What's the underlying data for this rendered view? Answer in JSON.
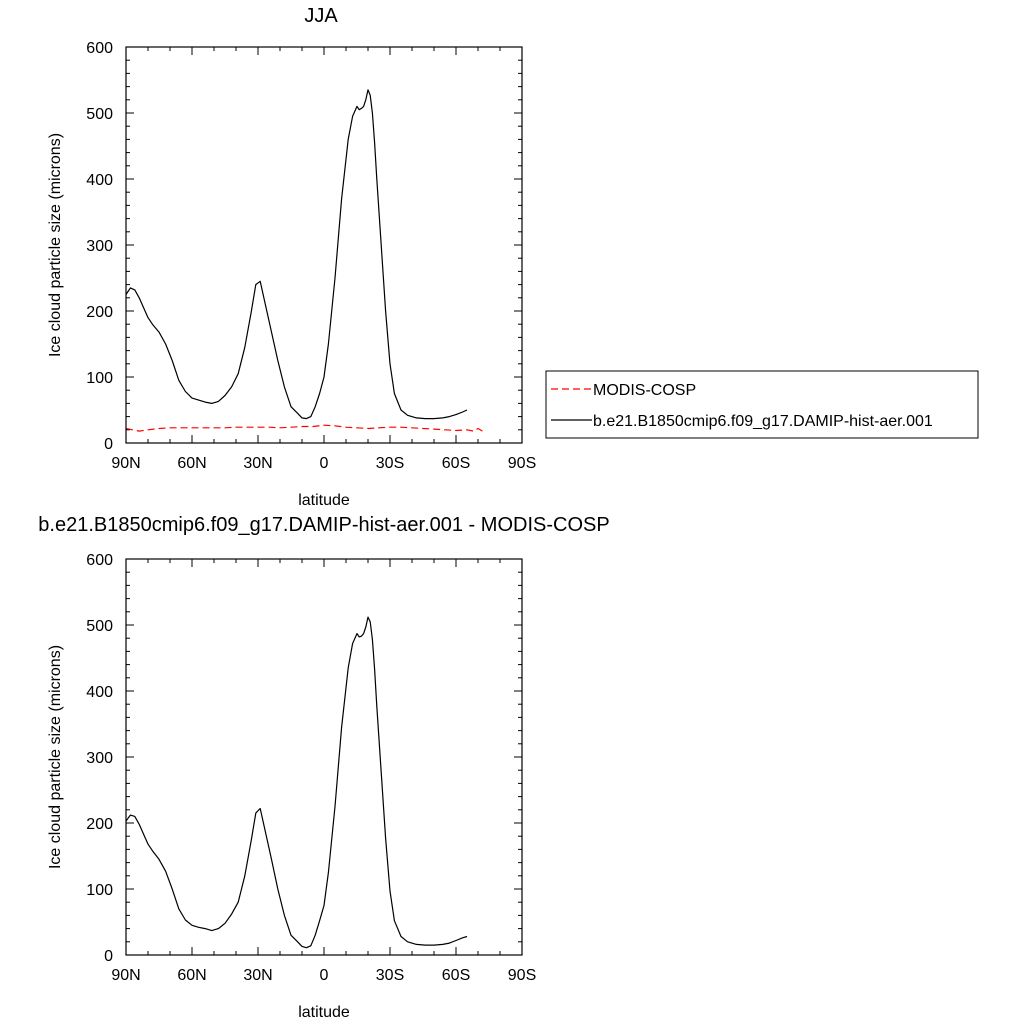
{
  "chart_data": [
    {
      "type": "line",
      "title": "JJA",
      "xlabel": "latitude",
      "ylabel": "Ice cloud particle size (microns)",
      "xlim": [
        90,
        -90
      ],
      "ylim": [
        0,
        600
      ],
      "x_ticks": [
        90,
        60,
        30,
        0,
        -30,
        -60,
        -90
      ],
      "x_tick_labels": [
        "90N",
        "60N",
        "30N",
        "0",
        "30S",
        "60S",
        "90S"
      ],
      "y_ticks": [
        0,
        100,
        200,
        300,
        400,
        500,
        600
      ],
      "y_tick_labels": [
        "0",
        "100",
        "200",
        "300",
        "400",
        "500",
        "600"
      ],
      "legend_placement": "outside-right",
      "series": [
        {
          "name": "MODIS-COSP",
          "color": "#ff0000",
          "dash": "dashed",
          "x": [
            90,
            87,
            84,
            80,
            75,
            70,
            65,
            60,
            55,
            50,
            45,
            40,
            35,
            30,
            25,
            20,
            15,
            10,
            5,
            0,
            -5,
            -10,
            -15,
            -20,
            -25,
            -30,
            -35,
            -40,
            -45,
            -50,
            -55,
            -60,
            -65,
            -68,
            -70,
            -72
          ],
          "y": [
            22,
            20,
            18,
            20,
            22,
            23,
            23,
            23,
            23,
            23,
            23,
            24,
            24,
            24,
            24,
            23,
            24,
            25,
            25,
            27,
            26,
            24,
            23,
            22,
            23,
            24,
            24,
            23,
            22,
            21,
            20,
            19,
            20,
            18,
            22,
            18
          ]
        },
        {
          "name": "b.e21.B1850cmip6.f09_g17.DAMIP-hist-aer.001",
          "color": "#000000",
          "dash": "solid",
          "x": [
            90,
            88,
            86,
            84,
            82,
            80,
            78,
            75,
            72,
            69,
            66,
            63,
            60,
            57,
            54,
            51,
            48,
            45,
            42,
            39,
            36,
            33,
            31,
            29,
            27,
            24,
            21,
            18,
            15,
            12,
            10,
            8,
            6,
            4,
            2,
            0,
            -2,
            -5,
            -8,
            -11,
            -13,
            -15,
            -16,
            -17,
            -18,
            -19,
            -20,
            -21,
            -22,
            -23,
            -24,
            -26,
            -28,
            -30,
            -32,
            -35,
            -38,
            -42,
            -46,
            -50,
            -54,
            -57,
            -60,
            -63,
            -65
          ],
          "y": [
            225,
            235,
            232,
            220,
            205,
            190,
            180,
            168,
            150,
            125,
            95,
            78,
            68,
            65,
            62,
            60,
            63,
            72,
            85,
            105,
            145,
            200,
            240,
            245,
            215,
            170,
            125,
            85,
            55,
            45,
            38,
            37,
            40,
            55,
            75,
            100,
            150,
            250,
            370,
            460,
            495,
            510,
            505,
            507,
            510,
            520,
            535,
            527,
            500,
            455,
            400,
            300,
            200,
            120,
            75,
            50,
            42,
            38,
            37,
            37,
            38,
            40,
            43,
            47,
            50
          ]
        }
      ]
    },
    {
      "type": "line",
      "title": "b.e21.B1850cmip6.f09_g17.DAMIP-hist-aer.001 - MODIS-COSP",
      "xlabel": "latitude",
      "ylabel": "Ice cloud particle size (microns)",
      "xlim": [
        90,
        -90
      ],
      "ylim": [
        0,
        600
      ],
      "x_ticks": [
        90,
        60,
        30,
        0,
        -30,
        -60,
        -90
      ],
      "x_tick_labels": [
        "90N",
        "60N",
        "30N",
        "0",
        "30S",
        "60S",
        "90S"
      ],
      "y_ticks": [
        0,
        100,
        200,
        300,
        400,
        500,
        600
      ],
      "y_tick_labels": [
        "0",
        "100",
        "200",
        "300",
        "400",
        "500",
        "600"
      ],
      "series": [
        {
          "color": "#000000",
          "dash": "solid",
          "x": [
            90,
            88,
            86,
            84,
            82,
            80,
            78,
            75,
            72,
            69,
            66,
            63,
            60,
            57,
            54,
            51,
            48,
            45,
            42,
            39,
            36,
            33,
            31,
            29,
            27,
            24,
            21,
            18,
            15,
            12,
            10,
            8,
            6,
            4,
            2,
            0,
            -2,
            -5,
            -8,
            -11,
            -13,
            -15,
            -16,
            -17,
            -18,
            -19,
            -20,
            -21,
            -22,
            -23,
            -24,
            -26,
            -28,
            -30,
            -32,
            -35,
            -38,
            -42,
            -46,
            -50,
            -54,
            -57,
            -60,
            -63,
            -65
          ],
          "y": [
            203,
            212,
            210,
            198,
            183,
            168,
            158,
            145,
            127,
            100,
            70,
            53,
            45,
            42,
            40,
            37,
            40,
            48,
            62,
            80,
            120,
            175,
            215,
            222,
            192,
            147,
            100,
            60,
            30,
            20,
            13,
            11,
            14,
            30,
            52,
            75,
            125,
            225,
            345,
            435,
            472,
            487,
            482,
            483,
            487,
            497,
            512,
            505,
            478,
            433,
            377,
            277,
            177,
            97,
            52,
            28,
            20,
            16,
            15,
            15,
            16,
            18,
            22,
            26,
            28
          ]
        }
      ]
    }
  ]
}
